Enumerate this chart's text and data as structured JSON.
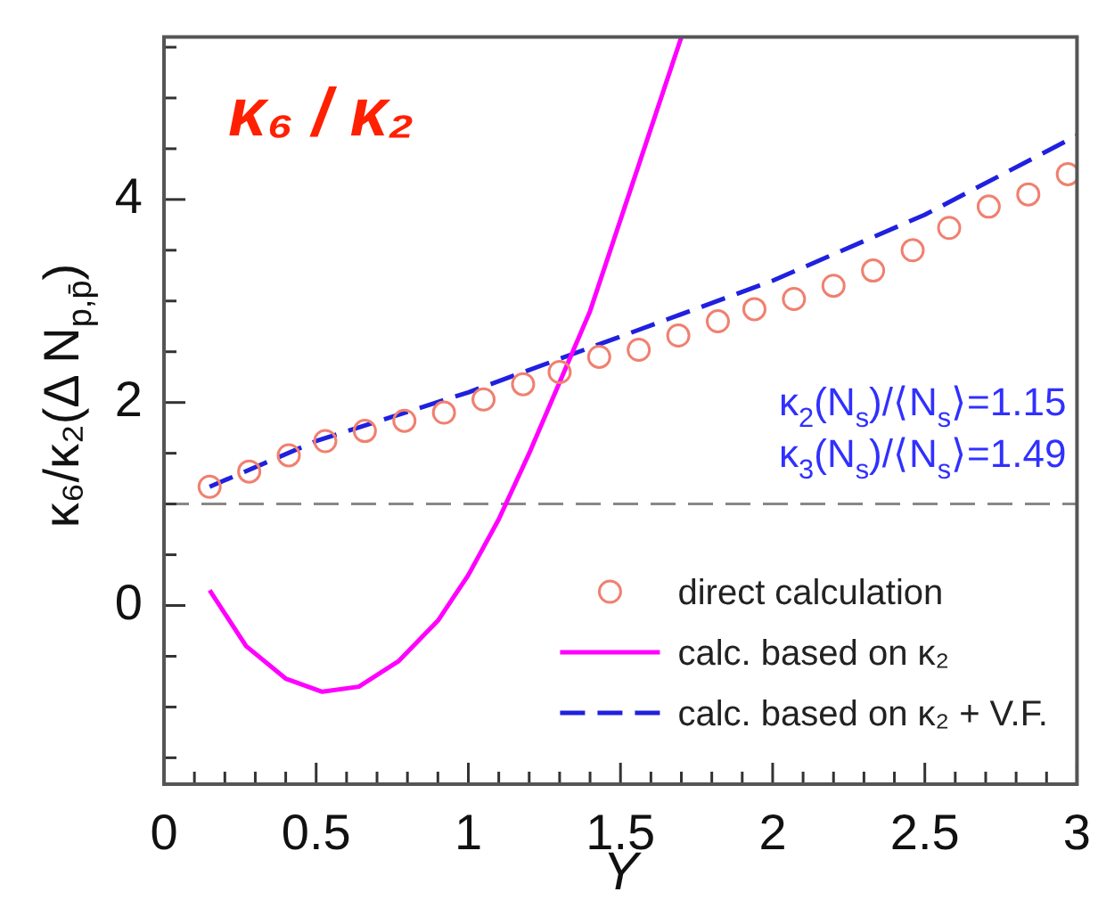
{
  "chart_data": {
    "type": "scatter",
    "title": "κ₆ / κ₂",
    "xlabel": "Y",
    "ylabel": "κ₆/κ₂(Δ N$_{p,p̄}$)",
    "xlim": [
      0,
      3
    ],
    "ylim": [
      -1.76,
      5.6
    ],
    "xticks": [
      0,
      {
        "value": 0.1,
        "label": null
      },
      {
        "value": 0.2,
        "label": null
      },
      {
        "value": 0.3,
        "label": null
      },
      {
        "value": 0.4,
        "label": null
      },
      0.5,
      {
        "value": 0.6,
        "label": null
      },
      {
        "value": 0.7,
        "label": null
      },
      {
        "value": 0.8,
        "label": null
      },
      {
        "value": 0.9,
        "label": null
      },
      1,
      {
        "value": 1.1,
        "label": null
      },
      {
        "value": 1.2,
        "label": null
      },
      {
        "value": 1.3,
        "label": null
      },
      {
        "value": 1.4,
        "label": null
      },
      1.5,
      {
        "value": 1.6,
        "label": null
      },
      {
        "value": 1.7,
        "label": null
      },
      {
        "value": 1.8,
        "label": null
      },
      {
        "value": 1.9,
        "label": null
      },
      2,
      {
        "value": 2.1,
        "label": null
      },
      {
        "value": 2.2,
        "label": null
      },
      {
        "value": 2.3,
        "label": null
      },
      {
        "value": 2.4,
        "label": null
      },
      2.5,
      {
        "value": 2.6,
        "label": null
      },
      {
        "value": 2.7,
        "label": null
      },
      {
        "value": 2.8,
        "label": null
      },
      {
        "value": 2.9,
        "label": null
      },
      3
    ],
    "yticks": [
      {
        "value": -1.5,
        "label": null
      },
      {
        "value": -1,
        "label": null
      },
      {
        "value": -0.5,
        "label": null
      },
      0,
      {
        "value": 0.5,
        "label": null
      },
      {
        "value": 1,
        "label": null
      },
      {
        "value": 1.5,
        "label": null
      },
      2,
      {
        "value": 2.5,
        "label": null
      },
      {
        "value": 3,
        "label": null
      },
      {
        "value": 3.5,
        "label": null
      },
      4,
      {
        "value": 4.5,
        "label": null
      },
      {
        "value": 5,
        "label": null
      },
      {
        "value": 5.5,
        "label": null
      }
    ],
    "grid": false,
    "legend": "bottom right",
    "ref_lines": [
      {
        "axis": "y",
        "value": 1,
        "color": "#888888",
        "line_style": "dashed"
      }
    ],
    "annotations": [
      "κ$_{2}$(N$_{s}$)/⟨N$_{s}$⟩=1.15",
      "κ$_{3}$(N$_{s}$)/⟨N$_{s}$⟩=1.49"
    ],
    "series": [
      {
        "name": "direct calculation",
        "marker": "circle",
        "color": "#f08070",
        "x": [
          0.15,
          0.28,
          0.41,
          0.53,
          0.66,
          0.79,
          0.92,
          1.05,
          1.18,
          1.3,
          1.43,
          1.56,
          1.69,
          1.82,
          1.94,
          2.07,
          2.2,
          2.33,
          2.46,
          2.58,
          2.71,
          2.84,
          2.97
        ],
        "values": [
          1.17,
          1.32,
          1.48,
          1.62,
          1.72,
          1.82,
          1.9,
          2.03,
          2.18,
          2.3,
          2.45,
          2.52,
          2.66,
          2.8,
          2.92,
          3.02,
          3.15,
          3.3,
          3.5,
          3.72,
          3.93,
          4.05,
          4.25
        ]
      },
      {
        "name": "calc. based on κ₂",
        "type": "line",
        "marker": "none",
        "line_style": "solid",
        "color": "#ff00ff",
        "x": [
          0.15,
          0.27,
          0.4,
          0.52,
          0.64,
          0.77,
          0.9,
          1.0,
          1.1,
          1.2,
          1.3,
          1.4,
          1.5,
          1.6,
          1.7
        ],
        "values": [
          0.15,
          -0.4,
          -0.72,
          -0.85,
          -0.8,
          -0.55,
          -0.15,
          0.3,
          0.85,
          1.5,
          2.2,
          2.9,
          3.8,
          4.7,
          5.6
        ]
      },
      {
        "name": "calc. based on κ₂ + V.F.",
        "type": "line",
        "marker": "none",
        "line_style": "dashed",
        "color": "#2020e0",
        "x": [
          0.15,
          0.5,
          1.0,
          1.5,
          2.0,
          2.5,
          3.0
        ],
        "values": [
          1.17,
          1.62,
          2.1,
          2.65,
          3.2,
          3.85,
          4.63
        ]
      }
    ]
  }
}
